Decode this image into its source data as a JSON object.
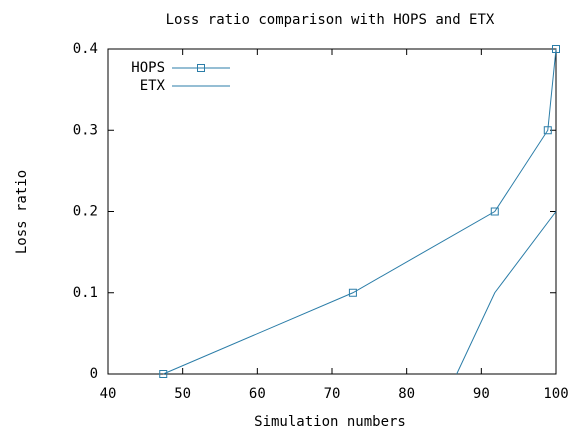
{
  "chart_data": {
    "type": "line",
    "title": "Loss ratio comparison with HOPS and ETX",
    "x_label": "Simulation numbers",
    "y_label": "Loss ratio",
    "series": [
      {
        "name": "HOPS",
        "color": "#2b7da8",
        "marker": "square",
        "x": [
          47.4,
          72.8,
          91.8,
          98.9,
          100
        ],
        "values": [
          0,
          0.1,
          0.2,
          0.3,
          0.4
        ]
      },
      {
        "name": "ETX",
        "color": "#2b7da8",
        "x": [
          86.7,
          91.8,
          100
        ],
        "values": [
          0,
          0.1,
          0.2
        ]
      }
    ],
    "xlim": [
      40,
      100
    ],
    "ylim": [
      0,
      0.4
    ],
    "xticks": [
      40,
      50,
      60,
      70,
      80,
      90,
      100
    ],
    "yticks": [
      0,
      0.1,
      0.2,
      0.3,
      0.4
    ],
    "legend": "top-left"
  }
}
